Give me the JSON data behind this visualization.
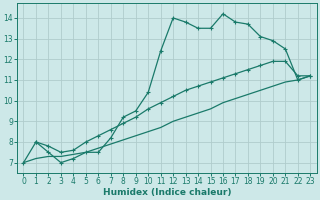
{
  "bg_color": "#cde8e8",
  "grid_color": "#b0cccc",
  "line_color": "#1a7a6a",
  "xlabel": "Humidex (Indice chaleur)",
  "xlim": [
    -0.5,
    23.5
  ],
  "ylim": [
    6.5,
    14.7
  ],
  "xticks": [
    0,
    1,
    2,
    3,
    4,
    5,
    6,
    7,
    8,
    9,
    10,
    11,
    12,
    13,
    14,
    15,
    16,
    17,
    18,
    19,
    20,
    21,
    22,
    23
  ],
  "yticks": [
    7,
    8,
    9,
    10,
    11,
    12,
    13,
    14
  ],
  "line1_x": [
    0,
    1,
    2,
    3,
    4,
    5,
    6,
    7,
    8,
    9,
    10,
    11,
    12,
    13,
    14,
    15,
    16,
    17,
    18,
    19,
    20,
    21,
    22,
    23
  ],
  "line1_y": [
    7.0,
    8.0,
    7.5,
    7.0,
    7.2,
    7.5,
    7.5,
    8.2,
    9.2,
    9.5,
    10.4,
    12.4,
    14.0,
    13.8,
    13.5,
    13.5,
    14.2,
    13.8,
    13.7,
    13.1,
    12.9,
    12.5,
    11.0,
    11.2
  ],
  "line2_x": [
    1,
    2,
    3,
    4,
    5,
    6,
    7,
    8,
    9,
    10,
    11,
    12,
    13,
    14,
    15,
    16,
    17,
    18,
    19,
    20,
    21,
    22,
    23
  ],
  "line2_y": [
    8.0,
    7.8,
    7.5,
    7.6,
    8.0,
    8.3,
    8.6,
    8.9,
    9.2,
    9.6,
    9.9,
    10.2,
    10.5,
    10.7,
    10.9,
    11.1,
    11.3,
    11.5,
    11.7,
    11.9,
    11.9,
    11.2,
    11.2
  ],
  "line3_x": [
    0,
    1,
    2,
    3,
    4,
    5,
    6,
    7,
    8,
    9,
    10,
    11,
    12,
    13,
    14,
    15,
    16,
    17,
    18,
    19,
    20,
    21,
    22,
    23
  ],
  "line3_y": [
    7.0,
    7.2,
    7.3,
    7.3,
    7.4,
    7.5,
    7.7,
    7.9,
    8.1,
    8.3,
    8.5,
    8.7,
    9.0,
    9.2,
    9.4,
    9.6,
    9.9,
    10.1,
    10.3,
    10.5,
    10.7,
    10.9,
    11.0,
    11.2
  ],
  "figsize": [
    3.2,
    2.0
  ],
  "dpi": 100
}
